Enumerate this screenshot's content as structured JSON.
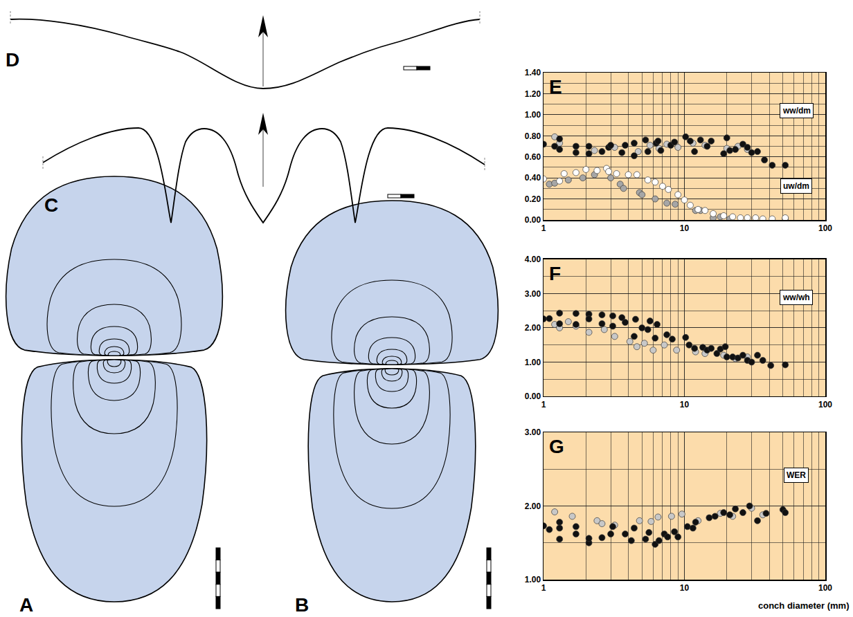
{
  "diagrams": [
    {
      "panel": "A"
    },
    {
      "panel": "B"
    },
    {
      "panel": "C"
    },
    {
      "panel": "D"
    }
  ],
  "chart_data": [
    {
      "type": "scatter",
      "title": "E",
      "log": "x",
      "grid": true,
      "annotations": [
        "ww/dm",
        "uw/dm"
      ],
      "xlim": [
        1,
        100
      ],
      "xticks": [
        1,
        10,
        100
      ],
      "ylim": [
        0,
        1.4
      ],
      "yticks": [
        {
          "value": 0,
          "label": "0.00"
        },
        {
          "value": 0.2,
          "label": "0.20"
        },
        {
          "value": 0.4,
          "label": "0.40"
        },
        {
          "value": 0.6,
          "label": "0.60"
        },
        {
          "value": 0.8,
          "label": "0.80"
        },
        {
          "value": 1.0,
          "label": "1.00"
        },
        {
          "value": 1.2,
          "label": "1.20"
        },
        {
          "value": 1.4,
          "label": "1.40"
        }
      ],
      "series": [
        {
          "color": "#c8c8c8",
          "marker": "circle",
          "x": [
            1.2,
            1.3,
            2.3,
            3.2,
            4.7,
            5.7,
            6.6,
            7.5,
            9,
            11.5,
            14,
            20,
            24,
            28
          ],
          "values": [
            0.79,
            0.73,
            0.66,
            0.69,
            0.65,
            0.71,
            0.68,
            0.72,
            0.69,
            0.73,
            0.71,
            0.68,
            0.7,
            0.67
          ]
        },
        {
          "color": "#111111",
          "marker": "circle",
          "x": [
            1,
            1.2,
            1.3,
            1.3,
            1.7,
            1.7,
            2.1,
            2.1,
            2.6,
            2.9,
            3,
            3.6,
            3.8,
            4.4,
            4.4,
            5.3,
            5.5,
            6.3,
            6.5,
            6.8,
            8,
            8.5,
            10.2,
            11,
            11.8,
            13,
            14.5,
            15.5,
            19,
            20,
            21,
            23,
            26,
            28,
            30,
            33,
            37,
            42,
            52
          ],
          "values": [
            0.72,
            0.7,
            0.77,
            0.67,
            0.7,
            0.64,
            0.63,
            0.7,
            0.65,
            0.69,
            0.71,
            0.64,
            0.71,
            0.61,
            0.73,
            0.76,
            0.65,
            0.73,
            0.75,
            0.66,
            0.71,
            0.74,
            0.79,
            0.75,
            0.65,
            0.76,
            0.7,
            0.75,
            0.63,
            0.78,
            0.66,
            0.67,
            0.72,
            0.69,
            0.64,
            0.65,
            0.57,
            0.52,
            0.52
          ]
        },
        {
          "color": "#a6a6a6",
          "marker": "circle",
          "x": [
            1.1,
            1.2,
            1.5,
            1.9,
            2.3,
            3,
            3.5,
            3.7,
            4.8,
            5,
            6.2,
            7.5,
            8.6,
            12,
            13,
            16,
            18,
            21,
            52
          ],
          "values": [
            0.34,
            0.35,
            0.38,
            0.4,
            0.43,
            0.4,
            0.34,
            0.3,
            0.26,
            0.24,
            0.2,
            0.16,
            0.15,
            0.09,
            0.09,
            0.02,
            0.03,
            0.01,
            0.01
          ]
        },
        {
          "color": "#ffffff",
          "marker": "circle",
          "x": [
            1,
            1.3,
            1.4,
            1.7,
            2,
            2.4,
            2.8,
            2.9,
            3.3,
            4,
            4.6,
            5.5,
            6.2,
            7,
            7.7,
            9,
            10,
            11,
            12.5,
            14,
            16,
            19,
            22,
            25,
            28,
            32,
            36,
            42,
            52
          ],
          "values": [
            0.39,
            0.37,
            0.44,
            0.45,
            0.48,
            0.47,
            0.49,
            0.46,
            0.44,
            0.43,
            0.43,
            0.38,
            0.36,
            0.32,
            0.29,
            0.24,
            0.19,
            0.14,
            0.1,
            0.09,
            0.06,
            0.04,
            0.03,
            0.02,
            0.02,
            0.02,
            0.01,
            0.01,
            0.02
          ]
        }
      ]
    },
    {
      "type": "scatter",
      "title": "F",
      "log": "x",
      "grid": true,
      "annotations": [
        "ww/wh"
      ],
      "xlim": [
        1,
        100
      ],
      "xticks": [
        1,
        10,
        100
      ],
      "ylim": [
        0,
        4
      ],
      "yticks": [
        {
          "value": 0,
          "label": "0.00"
        },
        {
          "value": 1,
          "label": "1.00"
        },
        {
          "value": 2,
          "label": "2.00"
        },
        {
          "value": 3,
          "label": "3.00"
        },
        {
          "value": 4,
          "label": "4.00"
        }
      ],
      "series": [
        {
          "color": "#c8c8c8",
          "marker": "circle",
          "x": [
            1.2,
            1.3,
            1.5,
            1.7,
            2.1,
            2.7,
            3.2,
            4.1,
            4.6,
            5.2,
            6,
            7.2,
            8.8,
            12,
            14,
            19,
            23,
            28
          ],
          "values": [
            2.1,
            2.0,
            2.18,
            2.05,
            1.87,
            1.95,
            1.75,
            1.6,
            1.45,
            1.55,
            1.35,
            1.5,
            1.35,
            1.3,
            1.25,
            1.2,
            1.1,
            1.15
          ]
        },
        {
          "color": "#111111",
          "marker": "circle",
          "x": [
            1,
            1.1,
            1.3,
            1.3,
            1.7,
            1.7,
            2.1,
            2.1,
            2.6,
            2.6,
            3.1,
            3.1,
            3.6,
            3.8,
            4.4,
            4.5,
            5,
            5.5,
            5.7,
            6.2,
            6.4,
            7.5,
            8.2,
            10.2,
            10.8,
            11.8,
            13.5,
            14.5,
            15.5,
            17,
            18,
            19.5,
            20,
            22,
            24,
            26,
            28,
            30,
            33,
            36,
            41,
            52
          ],
          "values": [
            2.26,
            2.27,
            2.43,
            2.12,
            2.42,
            2.1,
            2.4,
            2.26,
            2.38,
            2.12,
            2.35,
            2.05,
            2.3,
            2.16,
            1.75,
            2.25,
            2.0,
            1.95,
            2.2,
            1.7,
            2.1,
            1.8,
            1.67,
            1.72,
            1.5,
            1.4,
            1.43,
            1.35,
            1.4,
            1.25,
            1.38,
            1.45,
            1.15,
            1.15,
            1.12,
            1.2,
            1.05,
            1.0,
            1.2,
            1.05,
            0.9,
            0.92
          ]
        }
      ]
    },
    {
      "type": "scatter",
      "title": "G",
      "log": "x",
      "grid": true,
      "annotations": [
        "WER"
      ],
      "xlabel": "conch diameter (mm)",
      "xlim": [
        1,
        100
      ],
      "xticks": [
        1,
        10,
        100
      ],
      "ylim": [
        1,
        3
      ],
      "yticks": [
        {
          "value": 1,
          "label": "1.00"
        },
        {
          "value": 2,
          "label": "2.00"
        },
        {
          "value": 3,
          "label": "3.00"
        }
      ],
      "series": [
        {
          "color": "#c8c8c8",
          "marker": "circle",
          "x": [
            1.2,
            1.6,
            2.4,
            2.6,
            3.2,
            4.8,
            5.8,
            6.5,
            8.1,
            9.6,
            12.5,
            18,
            22,
            30,
            36
          ],
          "values": [
            1.92,
            1.86,
            1.8,
            1.76,
            1.74,
            1.8,
            1.79,
            1.85,
            1.86,
            1.89,
            1.8,
            1.9,
            1.86,
            1.97,
            1.88
          ]
        },
        {
          "color": "#111111",
          "marker": "circle",
          "x": [
            1,
            1.1,
            1.3,
            1.3,
            1.3,
            1.7,
            1.7,
            2.1,
            2.1,
            2.6,
            3,
            3.1,
            3.8,
            4.2,
            4.4,
            5.3,
            5.6,
            6.2,
            6.6,
            7.2,
            7.6,
            8.5,
            9,
            10.5,
            11.5,
            12,
            15,
            16.5,
            19,
            21,
            23,
            26,
            29,
            33,
            38,
            50,
            52
          ],
          "values": [
            1.73,
            1.68,
            1.78,
            1.55,
            1.7,
            1.62,
            1.72,
            1.5,
            1.56,
            1.57,
            1.62,
            1.72,
            1.62,
            1.53,
            1.7,
            1.55,
            1.64,
            1.48,
            1.53,
            1.62,
            1.58,
            1.65,
            1.58,
            1.72,
            1.7,
            1.78,
            1.84,
            1.86,
            1.91,
            1.88,
            1.96,
            1.91,
            2.0,
            1.8,
            1.9,
            1.95,
            1.91
          ]
        }
      ]
    }
  ]
}
